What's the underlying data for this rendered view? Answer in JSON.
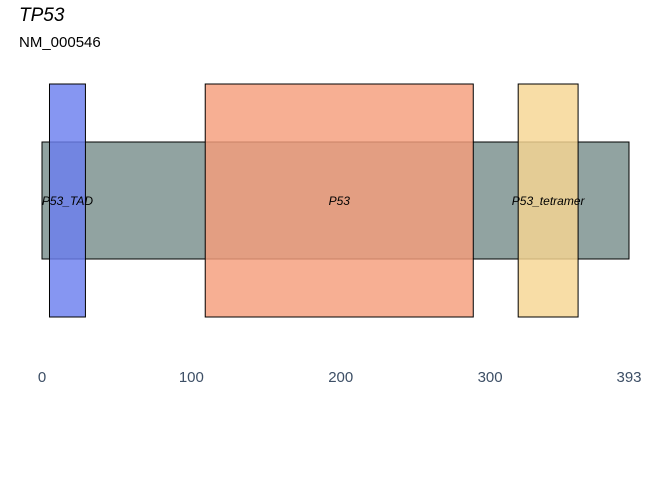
{
  "header": {
    "title": "TP53",
    "subtitle": "NM_000546"
  },
  "chart_data": {
    "type": "protein-domain",
    "protein_length": 393,
    "xlim": [
      1,
      393
    ],
    "x_ticks": [
      0,
      100,
      200,
      300,
      393
    ],
    "backbone": {
      "start": 1,
      "end": 393,
      "color": "#91a3a1"
    },
    "domains": [
      {
        "name": "P53_TAD",
        "start": 6,
        "end": 30,
        "color": "#6b7fef"
      },
      {
        "name": "P53",
        "start": 110,
        "end": 289,
        "color": "#f59e7b"
      },
      {
        "name": "P53_tetramer",
        "start": 319,
        "end": 359,
        "color": "#f7d592"
      }
    ]
  }
}
